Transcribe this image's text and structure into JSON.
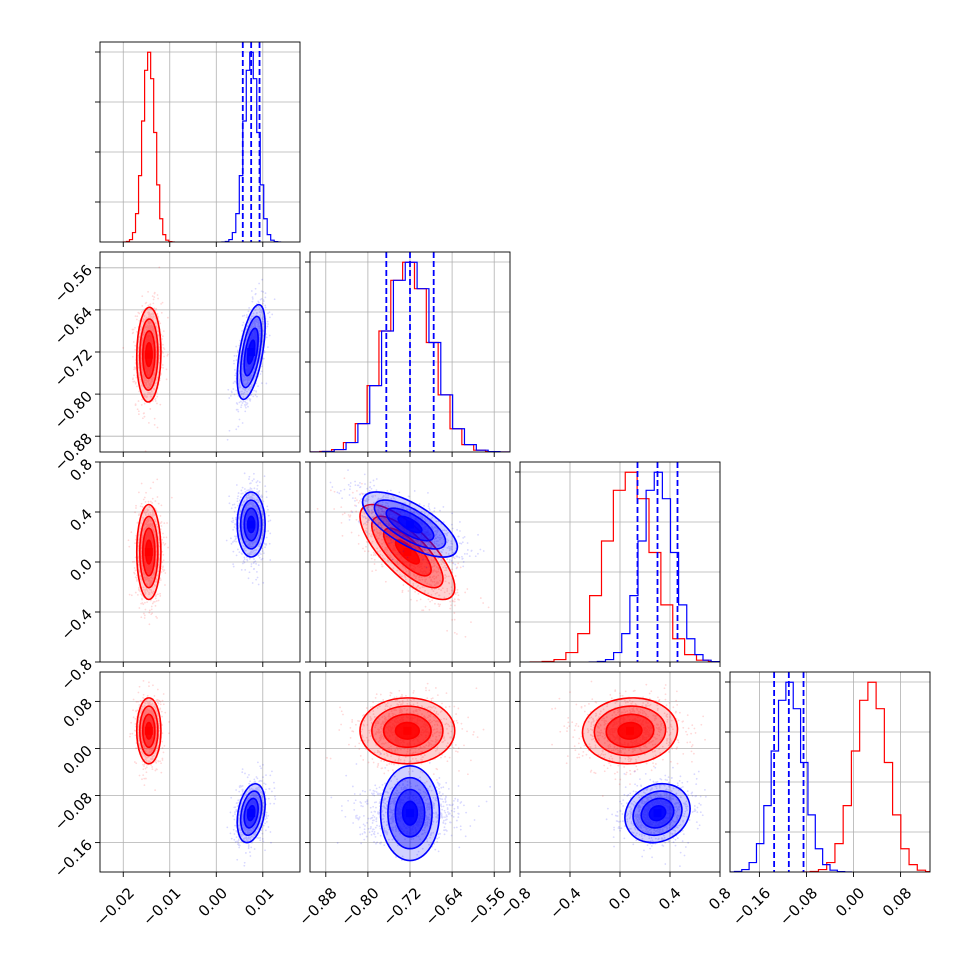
{
  "chart_data": {
    "type": "corner",
    "grid": true,
    "params": [
      {
        "range": [
          -0.025,
          0.018
        ],
        "ticks": [
          "−0.02",
          "−0.01",
          "0.00",
          "0.01"
        ],
        "tick_values": [
          -0.02,
          -0.01,
          0.0,
          0.01
        ]
      },
      {
        "range": [
          -0.91,
          -0.53
        ],
        "ticks": [
          "−0.88",
          "−0.80",
          "−0.72",
          "−0.64",
          "−0.56"
        ],
        "tick_values": [
          -0.88,
          -0.8,
          -0.72,
          -0.64,
          -0.56
        ]
      },
      {
        "range": [
          -0.8,
          0.8
        ],
        "ticks": [
          "−0.8",
          "−0.4",
          "0.0",
          "0.4",
          "0.8"
        ],
        "tick_values": [
          -0.8,
          -0.4,
          0.0,
          0.4,
          0.8
        ]
      },
      {
        "range": [
          -0.21,
          0.13
        ],
        "ticks": [
          "−0.16",
          "−0.08",
          "0.00",
          "0.08"
        ],
        "tick_values": [
          -0.16,
          -0.08,
          0.0,
          0.08
        ]
      }
    ],
    "series": [
      {
        "color": "#ff0000",
        "means": [
          -0.0145,
          -0.725,
          0.08,
          0.03
        ],
        "stds": [
          0.0013,
          0.045,
          0.19,
          0.028
        ],
        "corr": [
          [
            0,
            1,
            0.05
          ],
          [
            0,
            2,
            0.0
          ],
          [
            0,
            3,
            0.0
          ],
          [
            1,
            2,
            -0.75
          ],
          [
            1,
            3,
            0.0
          ],
          [
            2,
            3,
            0.05
          ]
        ],
        "quantiles": null
      },
      {
        "color": "#0000ff",
        "means": [
          0.0075,
          -0.72,
          0.3,
          -0.11
        ],
        "stds": [
          0.0015,
          0.045,
          0.13,
          0.025
        ],
        "corr": [
          [
            0,
            1,
            0.55
          ],
          [
            0,
            2,
            0.0
          ],
          [
            0,
            3,
            0.3
          ],
          [
            1,
            2,
            -0.7
          ],
          [
            1,
            3,
            0.0
          ],
          [
            2,
            3,
            0.15
          ]
        ],
        "quantiles": [
          [
            0.0057,
            0.0075,
            0.0093
          ],
          [
            -0.765,
            -0.72,
            -0.675
          ],
          [
            0.14,
            0.3,
            0.46
          ],
          [
            -0.135,
            -0.11,
            -0.085
          ]
        ]
      }
    ]
  }
}
